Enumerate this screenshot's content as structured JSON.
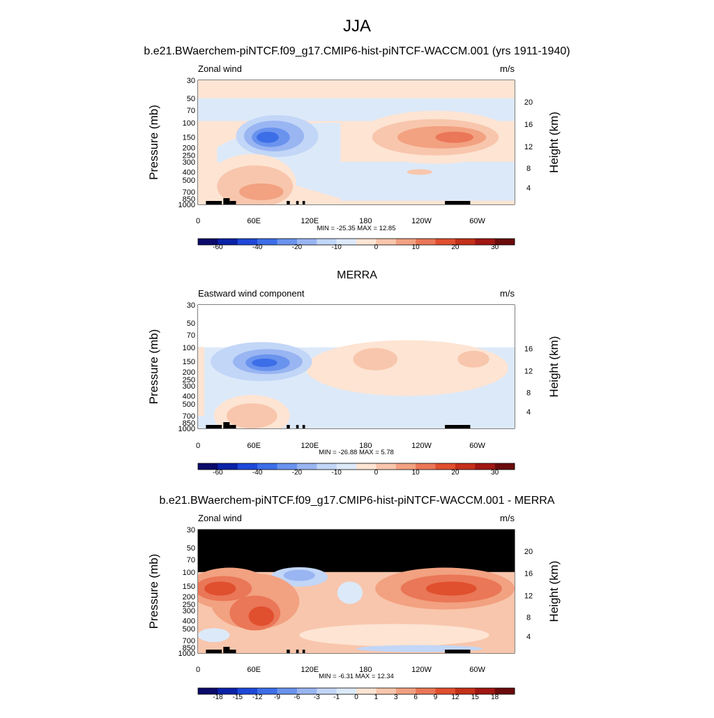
{
  "figure": {
    "title": "JJA",
    "subtitle_model": "b.e21.BWaerchem-piNTCF.f09_g17.CMIP6-hist-piNTCF-WACCM.001 (yrs 1911-1940)",
    "subtitle_obs": "MERRA",
    "subtitle_diff": "b.e21.BWaerchem-piNTCF.f09_g17.CMIP6-hist-piNTCF-WACCM.001 - MERRA"
  },
  "colors": {
    "abs_scale": [
      "#0a0a6b",
      "#0a22a6",
      "#1f48d9",
      "#3c6ee8",
      "#6a93ee",
      "#99b5f2",
      "#c2d6f7",
      "#dce9f9",
      "#fde4d3",
      "#f8c6ac",
      "#f2a181",
      "#ea7757",
      "#e04f2e",
      "#c4301a",
      "#a01612",
      "#6b0a0a"
    ],
    "diff_scale": [
      "#0a0a6b",
      "#0a22a6",
      "#1f48d9",
      "#3c6ee8",
      "#6a93ee",
      "#99b5f2",
      "#c2d6f7",
      "#dce9f9",
      "#fde4d3",
      "#f8c6ac",
      "#f2a181",
      "#ea7757",
      "#e04f2e",
      "#c4301a",
      "#a01612",
      "#6b0a0a"
    ],
    "mask": "#000000",
    "topo": "#000000"
  },
  "chart_data": [
    {
      "type": "contour",
      "panel_label_left": "Zonal wind",
      "panel_label_right": "m/s",
      "xlabel": "",
      "ylabel": "Pressure (mb)",
      "ylabel_right": "Height (km)",
      "x_ticks": [
        "0",
        "60E",
        "120E",
        "180",
        "120W",
        "60W"
      ],
      "y_ticks": [
        "30",
        "50",
        "70",
        "100",
        "150",
        "200",
        "250",
        "300",
        "400",
        "500",
        "700",
        "850",
        "1000"
      ],
      "y_ticks_right": [
        "20",
        "16",
        "12",
        "8",
        "4"
      ],
      "min_max": "MIN = -25.35  MAX =  12.85",
      "colorbar_labels": [
        "-60",
        "-40",
        "-20",
        "-10",
        "0",
        "10",
        "20",
        "30"
      ],
      "colorbar": "abs",
      "features": [
        {
          "name": "upper-easterly-band",
          "level": 7
        },
        {
          "name": "easterly-jet-60E-120E",
          "level": 4,
          "min": -25.35
        },
        {
          "name": "westerly-max-120W-60W",
          "level": 12,
          "max": 12.85
        }
      ]
    },
    {
      "type": "contour",
      "panel_label_left": "Eastward wind component",
      "panel_label_right": "m/s",
      "xlabel": "",
      "ylabel": "Pressure (mb)",
      "ylabel_right": "Height (km)",
      "x_ticks": [
        "0",
        "60E",
        "120E",
        "180",
        "120W",
        "60W"
      ],
      "y_ticks": [
        "30",
        "50",
        "70",
        "100",
        "150",
        "200",
        "250",
        "300",
        "400",
        "500",
        "700",
        "850",
        "1000"
      ],
      "y_ticks_right": [
        "16",
        "12",
        "8",
        "4"
      ],
      "min_max": "MIN = -26.88  MAX =   5.78",
      "colorbar_labels": [
        "-60",
        "-40",
        "-20",
        "-10",
        "0",
        "10",
        "20",
        "30"
      ],
      "colorbar": "abs",
      "features": [
        {
          "name": "no-data-above-100mb",
          "level": null
        },
        {
          "name": "easterly-jet-60E-120E",
          "level": 4,
          "min": -26.88
        },
        {
          "name": "weak-westerlies-180-60W",
          "level": 8,
          "max": 5.78
        }
      ]
    },
    {
      "type": "contour",
      "panel_label_left": "Zonal wind",
      "panel_label_right": "m/s",
      "xlabel": "",
      "ylabel": "Pressure (mb)",
      "ylabel_right": "Height (km)",
      "x_ticks": [
        "0",
        "60E",
        "120E",
        "180",
        "120W",
        "60W"
      ],
      "y_ticks": [
        "30",
        "50",
        "70",
        "100",
        "150",
        "200",
        "250",
        "300",
        "400",
        "500",
        "700",
        "850",
        "1000"
      ],
      "y_ticks_right": [
        "20",
        "16",
        "12",
        "8",
        "4"
      ],
      "min_max": "MIN =  -6.31  MAX =  12.34",
      "colorbar_labels": [
        "-18",
        "-15",
        "-12",
        "-9",
        "-6",
        "-3",
        "-1",
        "0",
        "1",
        "3",
        "6",
        "9",
        "12",
        "15",
        "18"
      ],
      "colorbar": "diff",
      "features": [
        {
          "name": "masked-above-100mb",
          "level": null
        },
        {
          "name": "positive-difference-0-60E",
          "level": 12,
          "max": 12.34
        },
        {
          "name": "positive-difference-120W-60W",
          "level": 12
        },
        {
          "name": "negative-difference-near-120E",
          "level": 5,
          "min": -6.31
        }
      ]
    }
  ]
}
